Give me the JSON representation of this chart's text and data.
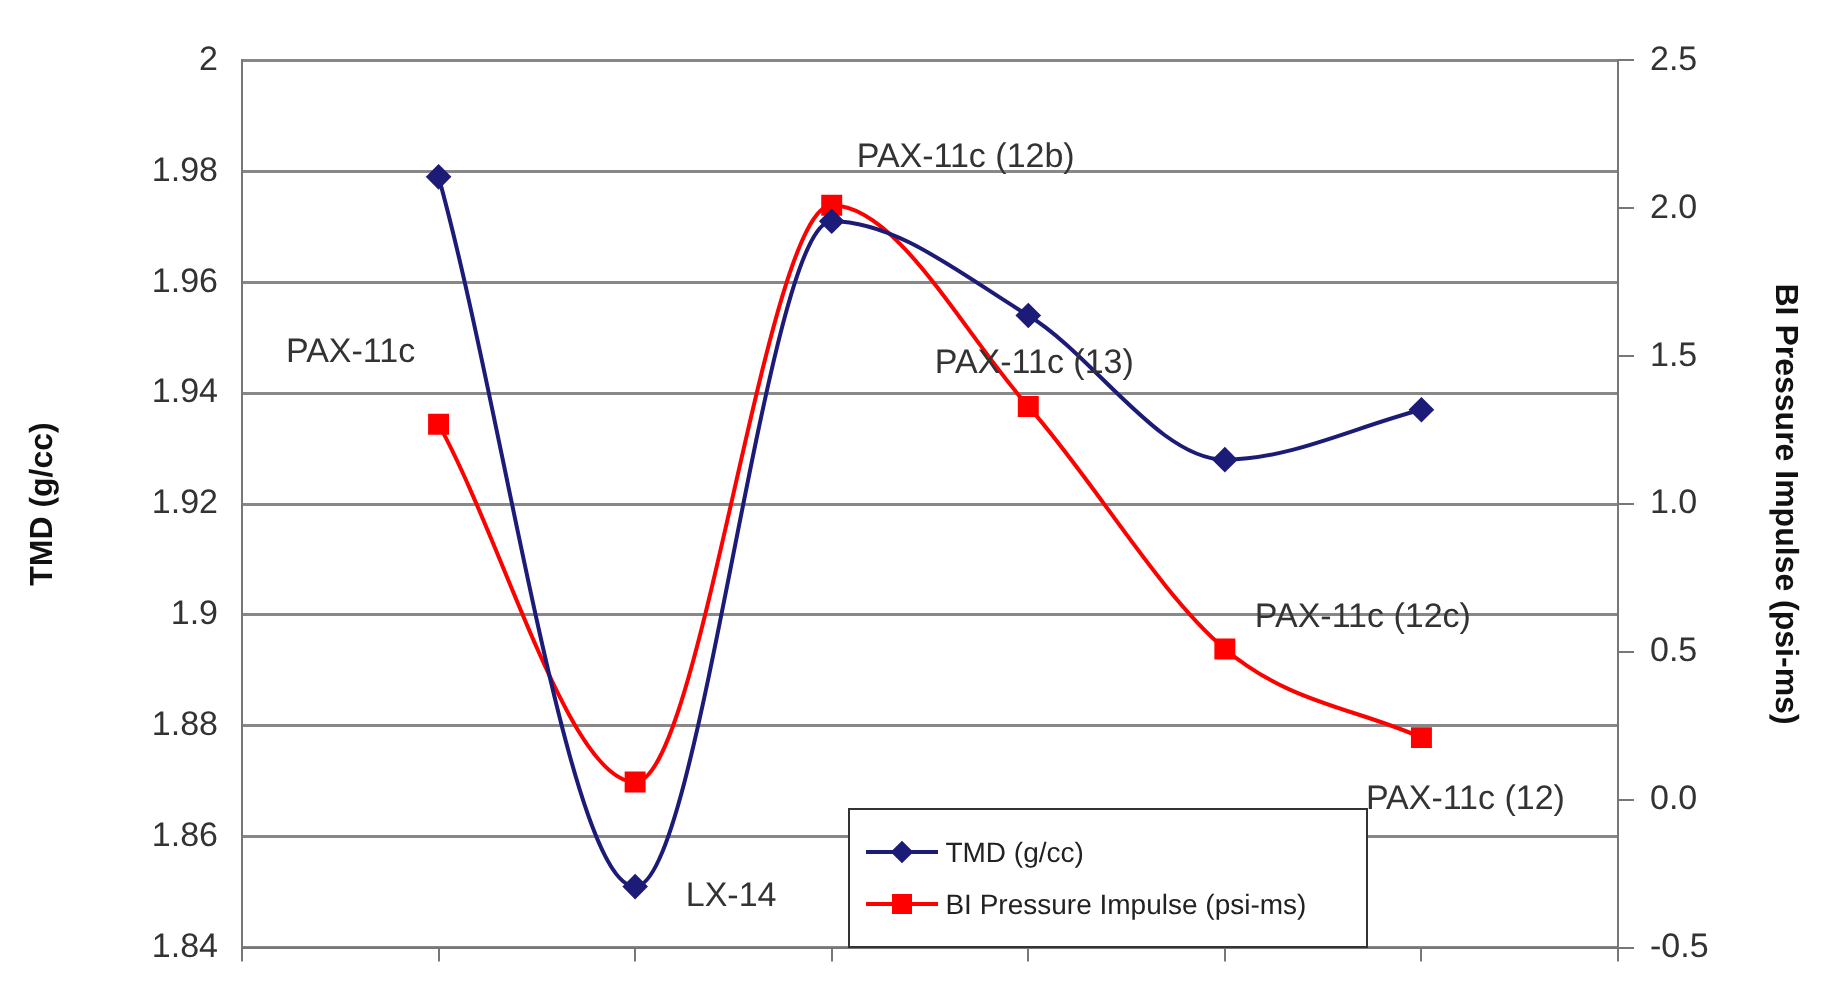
{
  "chart_data": {
    "type": "line",
    "ylabel": "TMD (g/cc)",
    "y2label": "BI Pressure Impulse (psi-ms)",
    "categories": [
      null,
      null,
      null,
      null,
      null,
      null
    ],
    "ylim": [
      1.84,
      2
    ],
    "yticks": [
      1.84,
      1.86,
      1.88,
      1.9,
      1.92,
      1.94,
      1.96,
      1.98,
      2
    ],
    "y2lim": [
      -0.5,
      2.5
    ],
    "y2ticks": [
      {
        "value": -0.5,
        "label": "-0.5"
      },
      {
        "value": 0,
        "label": "0.0"
      },
      {
        "value": 0.5,
        "label": "0.5"
      },
      {
        "value": 1,
        "label": "1.0"
      },
      {
        "value": 1.5,
        "label": "1.5"
      },
      {
        "value": 2,
        "label": "2.0"
      },
      {
        "value": 2.5,
        "label": "2.5"
      }
    ],
    "series": [
      {
        "name": "TMD (g/cc)",
        "color": "#1c1c78",
        "marker": "diamond",
        "values": [
          1.979,
          1.851,
          1.971,
          1.954,
          1.928,
          1.937
        ]
      },
      {
        "name": "BI Pressure Impulse (psi-ms)",
        "color": "#ff0000",
        "marker": "square",
        "axis": "y2",
        "values": [
          1.27,
          0.06,
          2.01,
          1.33,
          0.51,
          0.21
        ]
      }
    ],
    "annotations": [
      "PAX-11c",
      "LX-14",
      "PAX-11c (12b)",
      "PAX-11c (13)",
      "PAX-11c (12c)",
      "PAX-11c (12)"
    ],
    "grid": "y",
    "legend": "bottom",
    "tick_labels": "y",
    "line_style": "solid"
  }
}
